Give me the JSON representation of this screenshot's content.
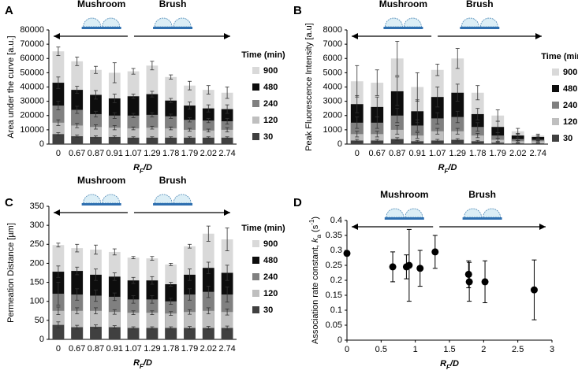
{
  "chart_data": [
    {
      "type": "bar",
      "panel_label": "A",
      "annotations": [
        "Mushroom",
        "Brush"
      ],
      "y_label": "Area under the curve [a.u.]",
      "x_label": [
        "R",
        "F",
        "/D"
      ],
      "legend_title": "Time (min)",
      "categories": [
        "0",
        "0.67",
        "0.87",
        "0.91",
        "1.07",
        "1.29",
        "1.78",
        "1.79",
        "2.02",
        "2.74"
      ],
      "ylim": [
        0,
        80000
      ],
      "yticks": [
        0,
        10000,
        20000,
        30000,
        40000,
        50000,
        60000,
        70000,
        80000
      ],
      "series": [
        {
          "name": "900",
          "color": "#d9d9d9",
          "values": [
            65000,
            58000,
            52000,
            50000,
            51000,
            55000,
            47000,
            41000,
            38000,
            36000
          ],
          "errors": [
            3000,
            3000,
            2500,
            7000,
            2000,
            3000,
            1500,
            3000,
            3000,
            4000
          ]
        },
        {
          "name": "480",
          "color": "#0d0d0d",
          "values": [
            43000,
            38000,
            34500,
            32000,
            33500,
            35000,
            30500,
            27000,
            25000,
            24500
          ],
          "errors": [
            4000,
            2500,
            3000,
            3000,
            1500,
            2000,
            1500,
            2500,
            2500,
            3000
          ]
        },
        {
          "name": "240",
          "color": "#808080",
          "values": [
            27000,
            24000,
            21000,
            20000,
            20000,
            20500,
            19500,
            17000,
            16500,
            16000
          ],
          "errors": [
            3000,
            2500,
            2000,
            2000,
            1500,
            1500,
            1500,
            1500,
            1500,
            2000
          ]
        },
        {
          "name": "120",
          "color": "#bfbfbf",
          "values": [
            15000,
            13000,
            12000,
            11500,
            11000,
            11500,
            11000,
            10000,
            9500,
            10000
          ],
          "errors": [
            2000,
            1500,
            1500,
            1500,
            1000,
            1000,
            1000,
            1000,
            1000,
            1500
          ]
        },
        {
          "name": "30",
          "color": "#404040",
          "values": [
            7000,
            5500,
            5000,
            5000,
            4500,
            4500,
            4500,
            4500,
            4500,
            4500
          ],
          "errors": [
            1000,
            800,
            700,
            700,
            600,
            600,
            600,
            600,
            600,
            600
          ]
        }
      ]
    },
    {
      "type": "bar",
      "panel_label": "B",
      "annotations": [
        "Mushroom",
        "Brush"
      ],
      "y_label": "Peak Fluorescence Intensity [a.u]",
      "x_label": [
        "R",
        "F",
        "/D"
      ],
      "legend_title": "Time (min)",
      "categories": [
        "0",
        "0.67",
        "0.87",
        "0.91",
        "1.07",
        "1.29",
        "1.78",
        "1.79",
        "2.02",
        "2.74"
      ],
      "ylim": [
        0,
        8000
      ],
      "yticks": [
        0,
        1000,
        2000,
        3000,
        4000,
        5000,
        6000,
        7000,
        8000
      ],
      "series": [
        {
          "name": "900",
          "color": "#d9d9d9",
          "values": [
            4400,
            4300,
            6000,
            4000,
            5200,
            6000,
            3600,
            2000,
            900,
            600
          ],
          "errors": [
            1100,
            900,
            1200,
            1000,
            400,
            700,
            500,
            400,
            200,
            100
          ]
        },
        {
          "name": "480",
          "color": "#0d0d0d",
          "values": [
            2800,
            2600,
            3700,
            2300,
            3300,
            3600,
            2100,
            1200,
            600,
            500
          ],
          "errors": [
            600,
            700,
            1000,
            800,
            700,
            600,
            400,
            400,
            150,
            100
          ]
        },
        {
          "name": "240",
          "color": "#808080",
          "values": [
            1500,
            1500,
            2000,
            1300,
            1800,
            1900,
            1200,
            600,
            350,
            300
          ],
          "errors": [
            400,
            400,
            500,
            400,
            400,
            400,
            300,
            200,
            100,
            80
          ]
        },
        {
          "name": "120",
          "color": "#bfbfbf",
          "values": [
            700,
            700,
            1000,
            600,
            900,
            900,
            600,
            300,
            200,
            200
          ],
          "errors": [
            200,
            200,
            300,
            200,
            200,
            200,
            150,
            100,
            50,
            50
          ]
        },
        {
          "name": "30",
          "color": "#404040",
          "values": [
            250,
            250,
            350,
            200,
            250,
            300,
            200,
            100,
            50,
            50
          ],
          "errors": [
            80,
            80,
            100,
            60,
            80,
            80,
            60,
            40,
            20,
            20
          ]
        }
      ]
    },
    {
      "type": "bar",
      "panel_label": "C",
      "annotations": [
        "Mushroom",
        "Brush"
      ],
      "y_label": "Permeation Distance [µm]",
      "x_label": [
        "R",
        "F",
        "/D"
      ],
      "legend_title": "Time (min)",
      "categories": [
        "0",
        "0.67",
        "0.87",
        "0.91",
        "1.07",
        "1.29",
        "1.78",
        "1.79",
        "2.02",
        "2.74"
      ],
      "ylim": [
        0,
        350
      ],
      "yticks": [
        0,
        50,
        100,
        150,
        200,
        250,
        300,
        350
      ],
      "series": [
        {
          "name": "900",
          "color": "#d9d9d9",
          "values": [
            248,
            240,
            236,
            230,
            215,
            213,
            197,
            245,
            278,
            263
          ],
          "errors": [
            5,
            10,
            12,
            8,
            3,
            5,
            3,
            5,
            20,
            30
          ]
        },
        {
          "name": "480",
          "color": "#0d0d0d",
          "values": [
            178,
            180,
            170,
            165,
            155,
            155,
            145,
            170,
            188,
            175
          ],
          "errors": [
            15,
            10,
            15,
            10,
            8,
            10,
            5,
            15,
            15,
            20
          ]
        },
        {
          "name": "240",
          "color": "#808080",
          "values": [
            120,
            118,
            115,
            112,
            105,
            105,
            100,
            118,
            125,
            118
          ],
          "errors": [
            30,
            15,
            15,
            10,
            10,
            10,
            8,
            15,
            15,
            20
          ]
        },
        {
          "name": "120",
          "color": "#bfbfbf",
          "values": [
            75,
            75,
            75,
            72,
            70,
            70,
            68,
            72,
            75,
            72
          ],
          "errors": [
            10,
            8,
            8,
            6,
            5,
            5,
            5,
            6,
            8,
            8
          ]
        },
        {
          "name": "30",
          "color": "#404040",
          "values": [
            38,
            32,
            33,
            32,
            30,
            30,
            30,
            30,
            30,
            30
          ],
          "errors": [
            8,
            5,
            5,
            4,
            3,
            3,
            3,
            4,
            4,
            5
          ]
        }
      ]
    },
    {
      "type": "scatter",
      "panel_label": "D",
      "annotations": [
        "Mushroom",
        "Brush"
      ],
      "y_label": [
        "Association rate constant, ",
        "k",
        "a",
        " (s",
        "-1",
        ")"
      ],
      "x_label": [
        "R",
        "F",
        "/D"
      ],
      "x": [
        0,
        0.67,
        0.87,
        0.91,
        1.07,
        1.29,
        1.78,
        1.79,
        2.02,
        2.74
      ],
      "values": [
        0.29,
        0.245,
        0.245,
        0.25,
        0.24,
        0.295,
        0.22,
        0.195,
        0.195,
        0.168
      ],
      "errors": [
        0,
        0.05,
        0.04,
        0.12,
        0.06,
        0.055,
        0.045,
        0.065,
        0.07,
        0.1
      ],
      "color": "#000000",
      "xlim": [
        0,
        3
      ],
      "xticks": [
        0,
        0.5,
        1,
        1.5,
        2,
        2.5,
        3
      ],
      "ylim": [
        0,
        0.4
      ],
      "yticks": [
        0,
        0.05,
        0.1,
        0.15,
        0.2,
        0.25,
        0.3,
        0.35,
        0.4
      ]
    }
  ]
}
